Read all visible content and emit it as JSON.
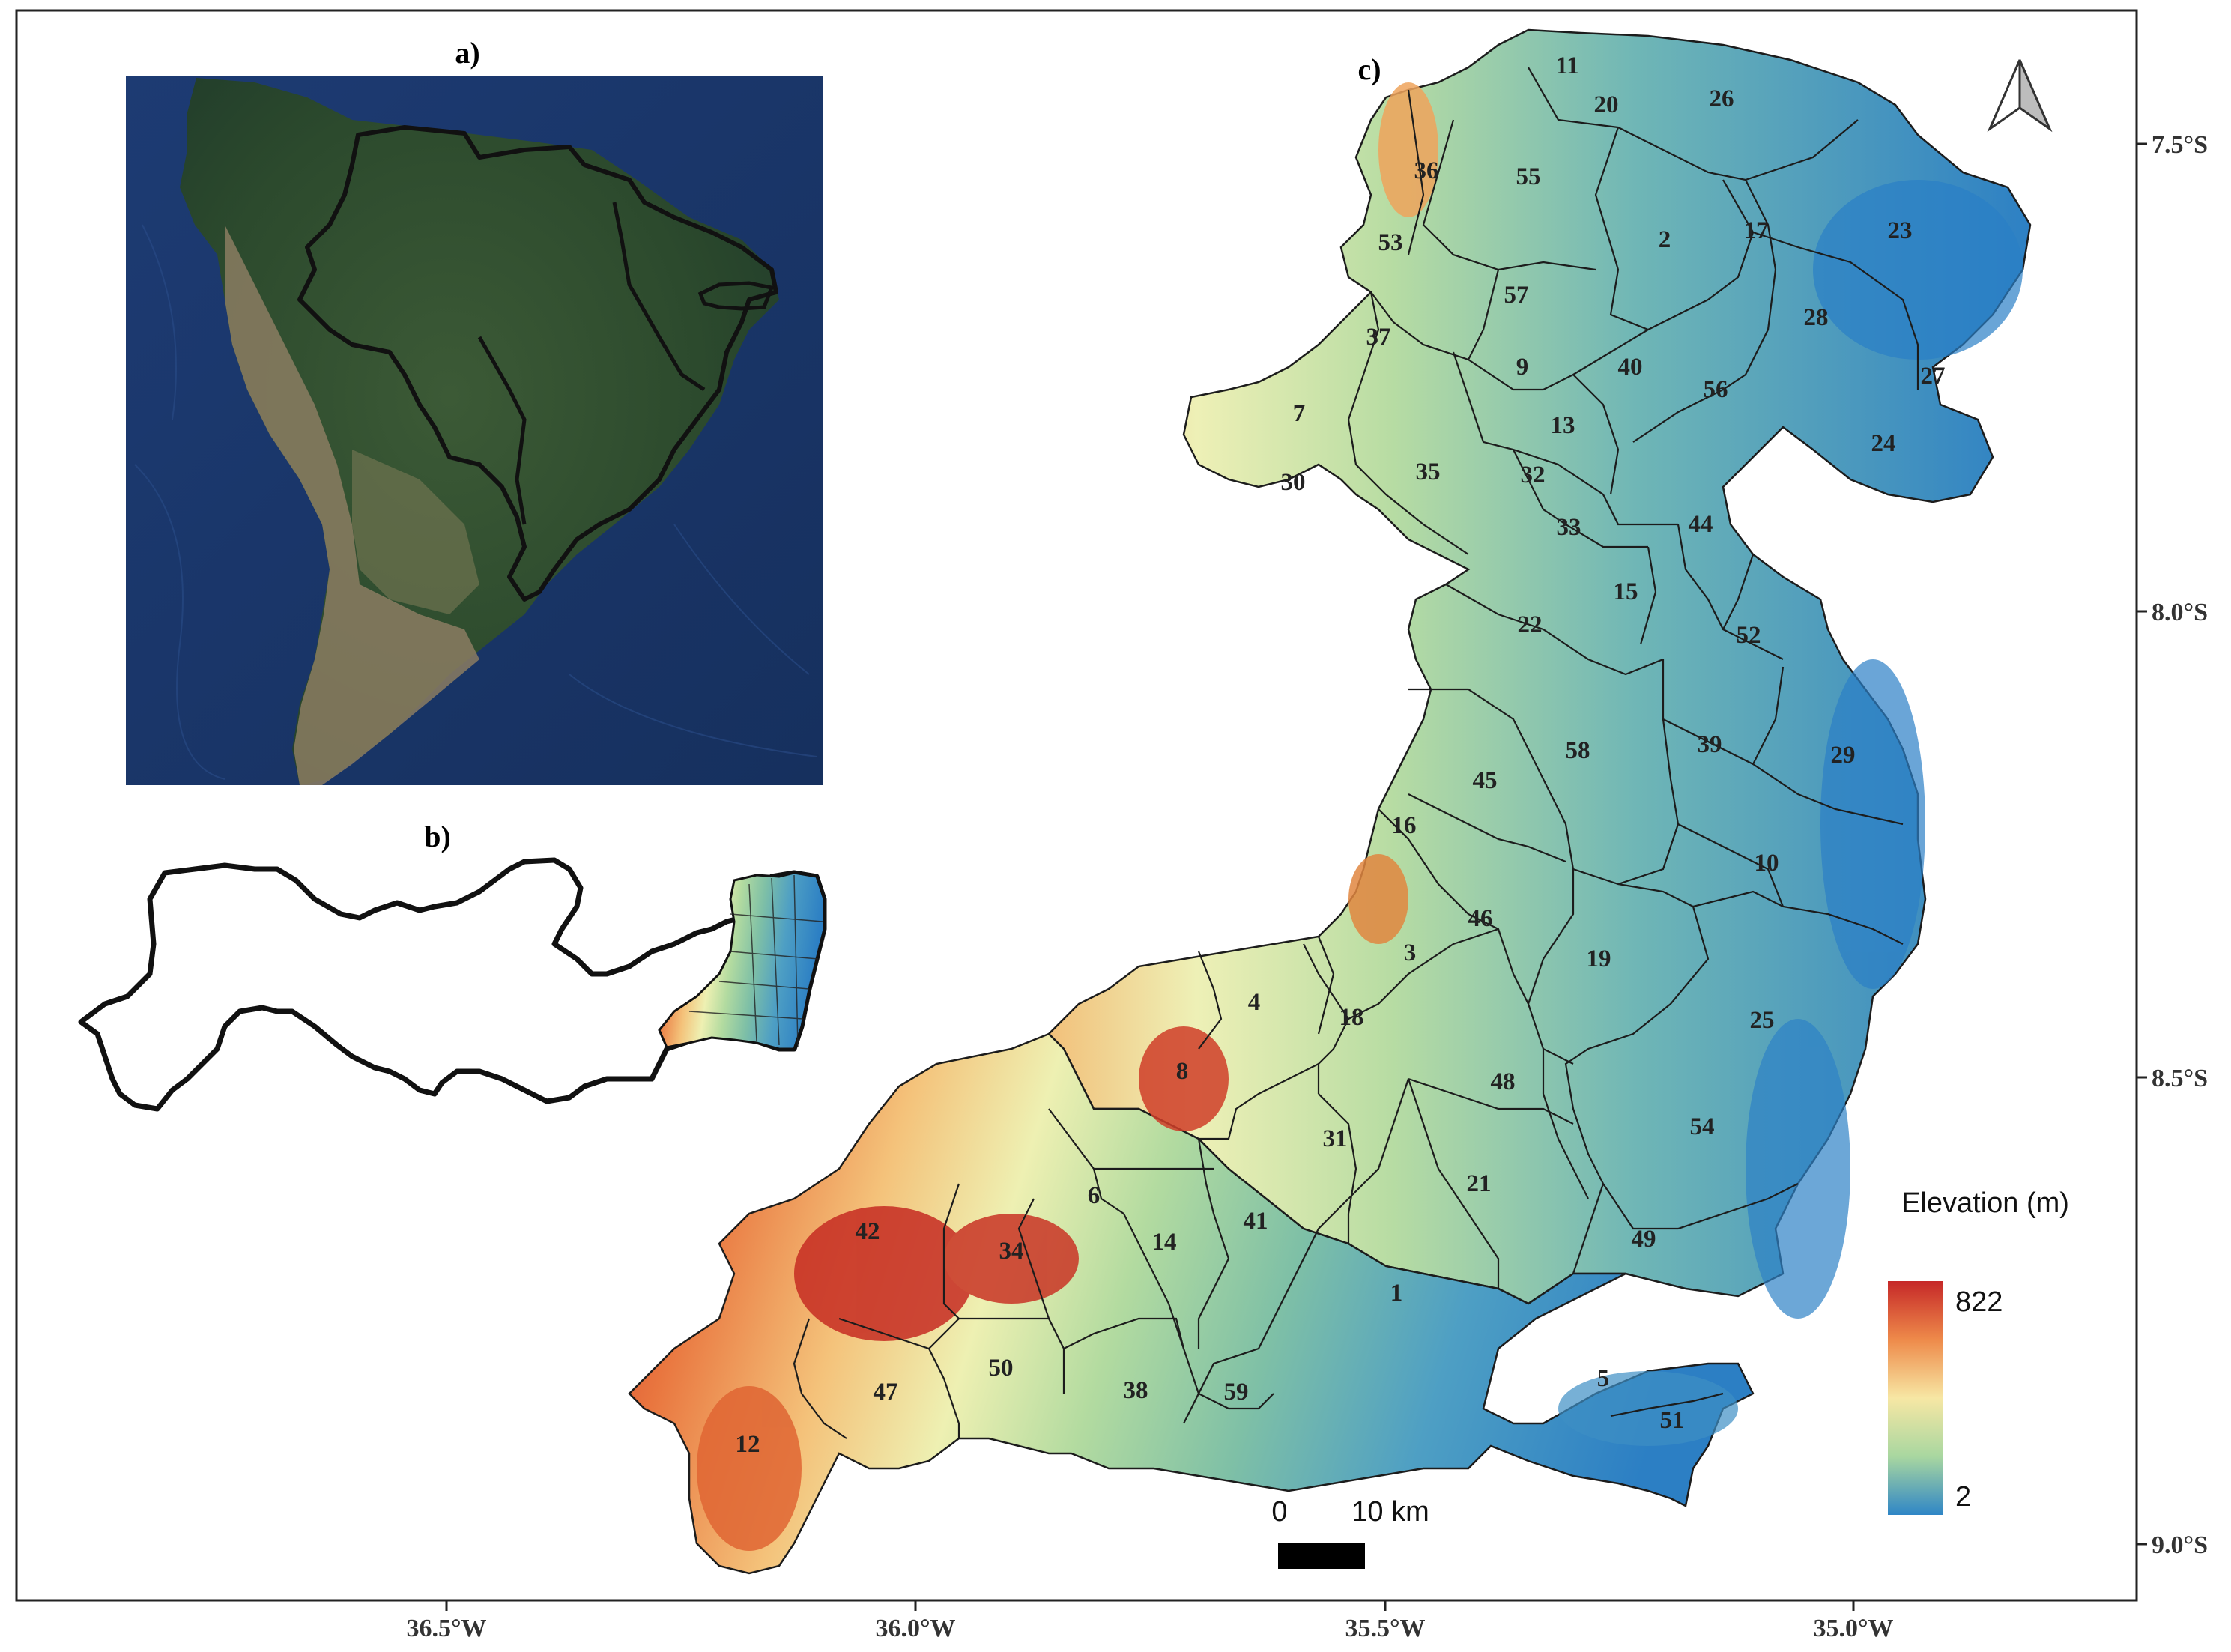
{
  "panels": {
    "a": "a)",
    "b": "b)",
    "c": "c)"
  },
  "axes": {
    "x_ticks": [
      "36.5°W",
      "36.0°W",
      "35.5°W",
      "35.0°W"
    ],
    "y_ticks": [
      "7.5°S",
      "8.0°S",
      "8.5°S",
      "9.0°S"
    ]
  },
  "legend": {
    "title": "Elevation (m)",
    "max": "822",
    "min": "2",
    "colors": [
      "#c62828",
      "#ee8a4a",
      "#f7e7a4",
      "#a9d7a0",
      "#2f86c6"
    ]
  },
  "scalebar": {
    "start": "0",
    "end": "10 km"
  },
  "north_arrow": "north-arrow-icon",
  "municipalities": [
    "11",
    "20",
    "26",
    "36",
    "55",
    "53",
    "2",
    "17",
    "23",
    "57",
    "28",
    "37",
    "9",
    "40",
    "56",
    "27",
    "7",
    "13",
    "24",
    "32",
    "30",
    "35",
    "33",
    "44",
    "15",
    "22",
    "52",
    "58",
    "39",
    "29",
    "45",
    "16",
    "10",
    "46",
    "3",
    "19",
    "4",
    "18",
    "25",
    "8",
    "48",
    "54",
    "31",
    "21",
    "6",
    "42",
    "34",
    "14",
    "41",
    "49",
    "1",
    "5",
    "50",
    "47",
    "38",
    "59",
    "51",
    "12"
  ]
}
